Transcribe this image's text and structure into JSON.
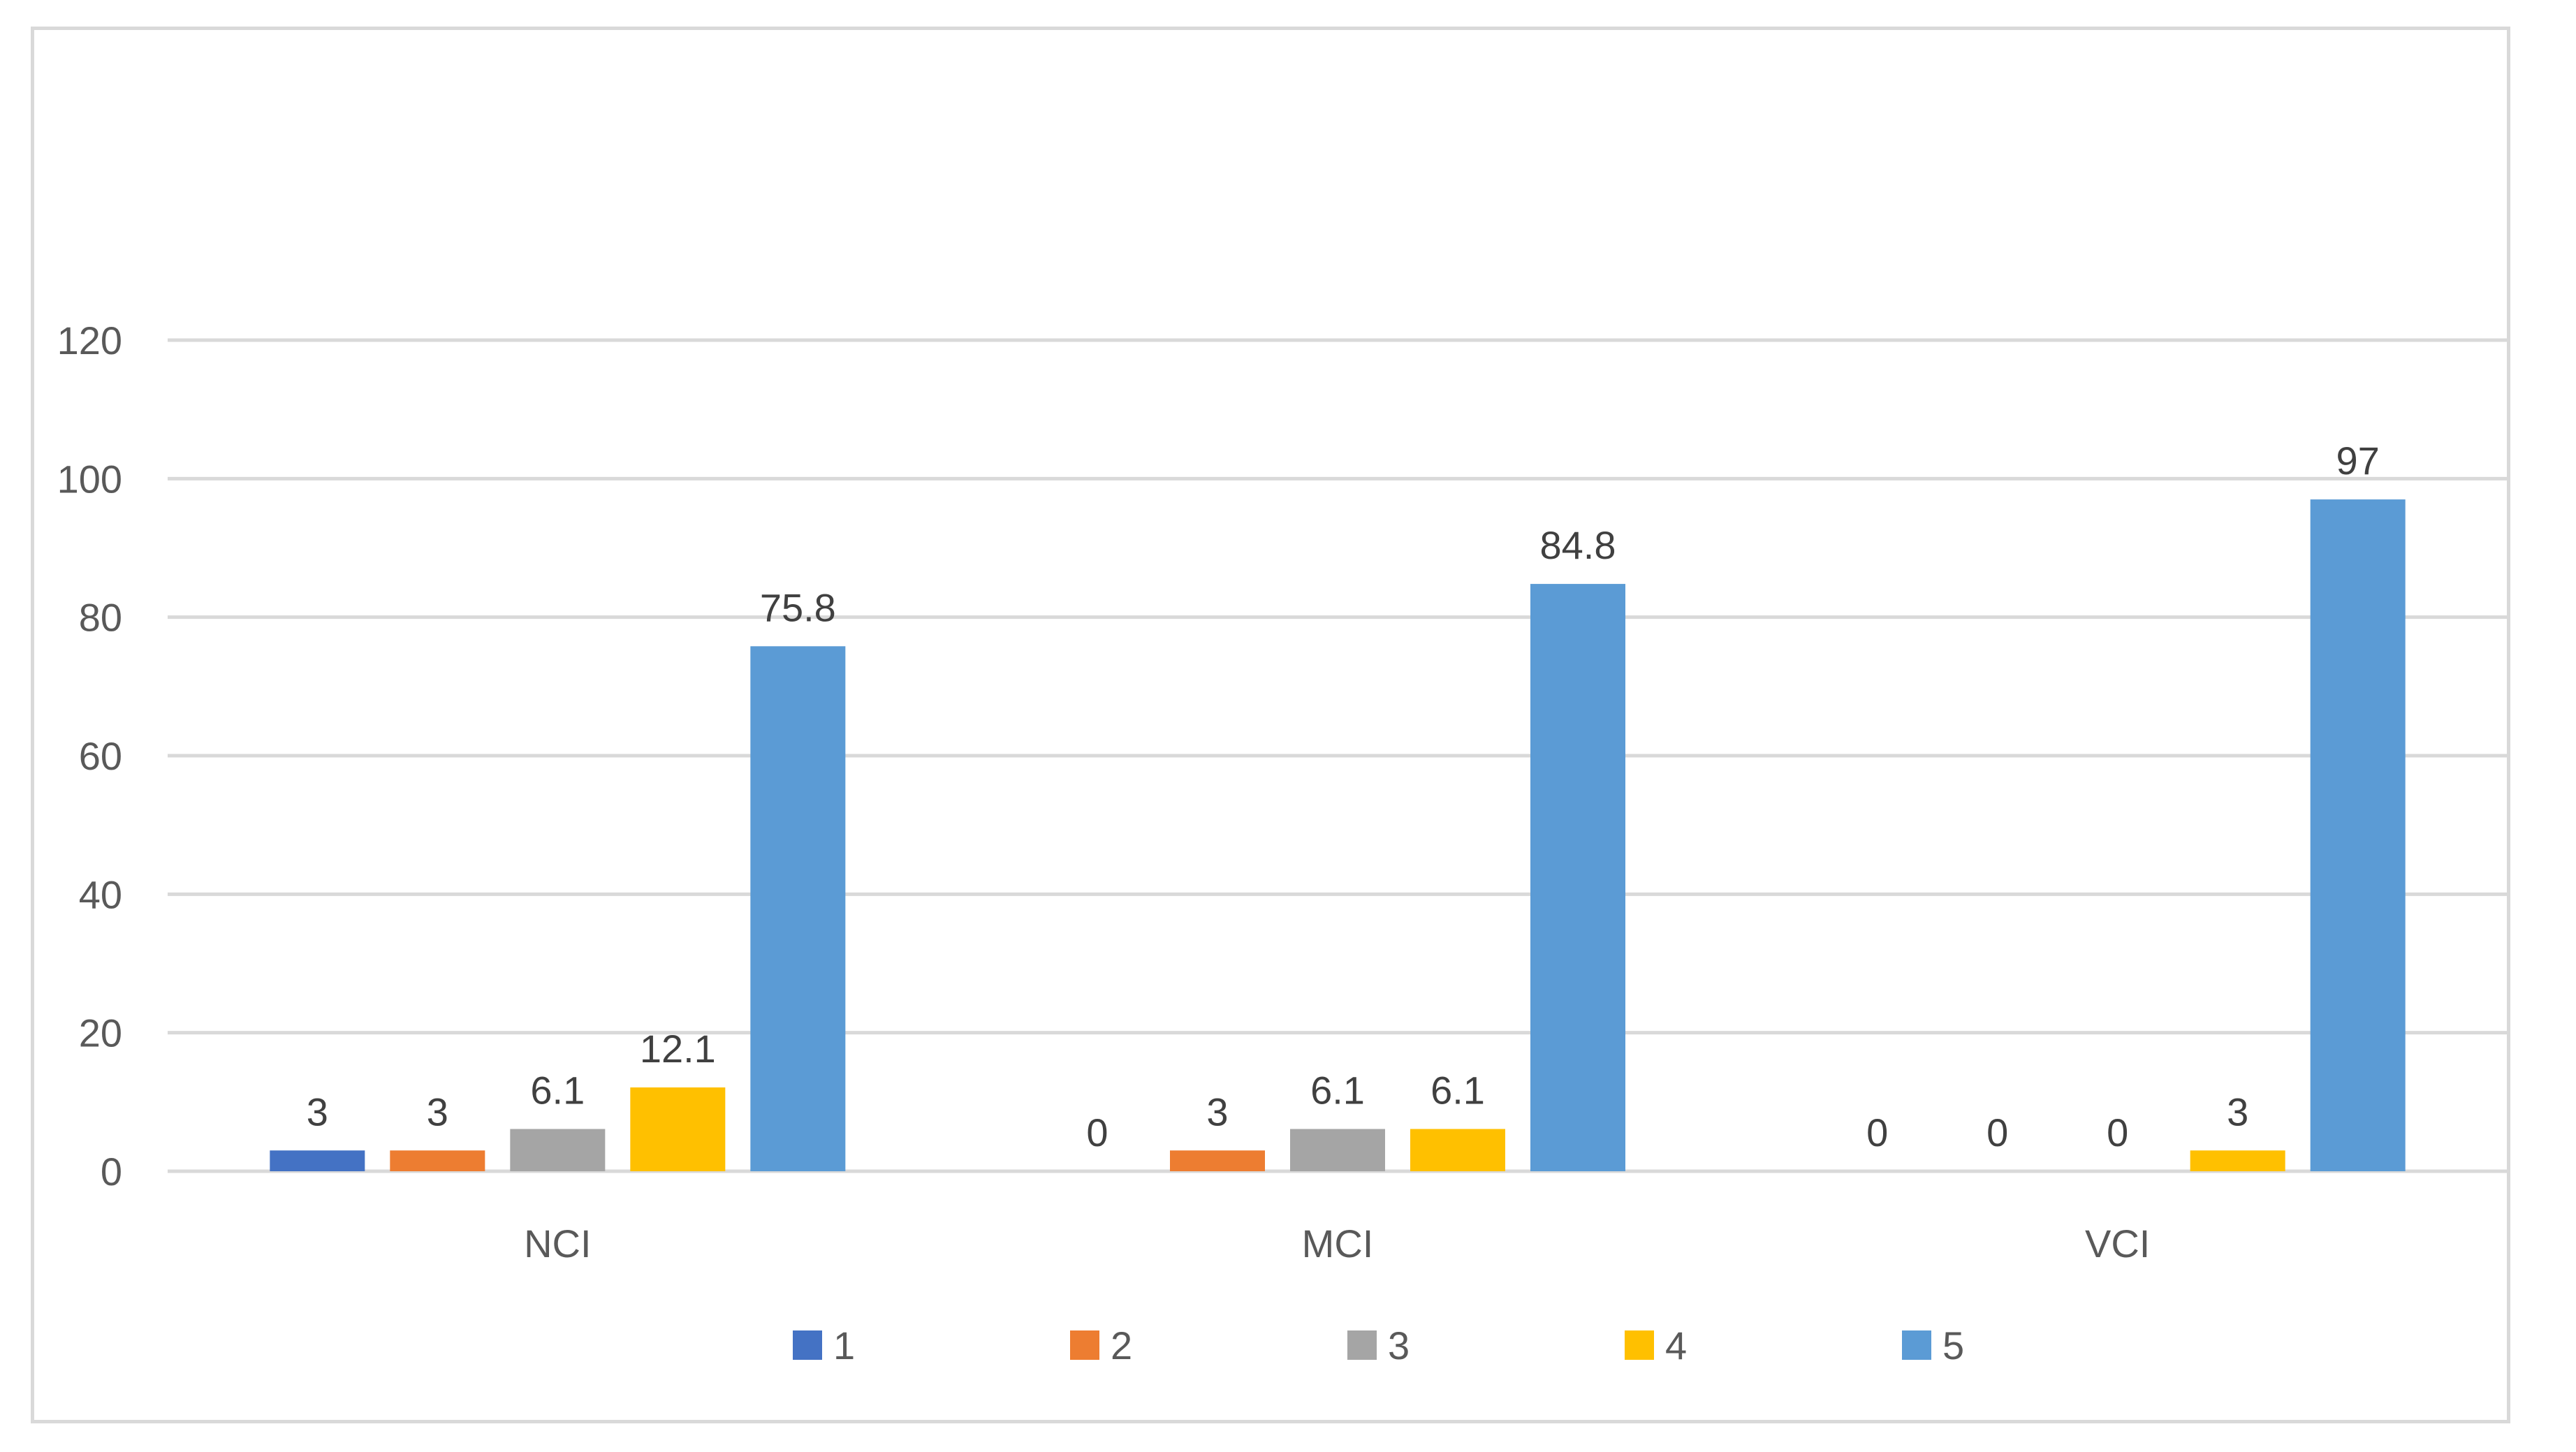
{
  "chart_data": {
    "type": "bar",
    "categories": [
      "NCI",
      "MCI",
      "VCI"
    ],
    "series": [
      {
        "name": "1",
        "values": [
          3,
          0,
          0
        ],
        "labels": [
          "3",
          "0",
          "0"
        ],
        "color": "#4472c4"
      },
      {
        "name": "2",
        "values": [
          3,
          3,
          0
        ],
        "labels": [
          "3",
          "3",
          "0"
        ],
        "color": "#ed7d31"
      },
      {
        "name": "3",
        "values": [
          6.1,
          6.1,
          0
        ],
        "labels": [
          "6.1",
          "6.1",
          "0"
        ],
        "color": "#a5a5a5"
      },
      {
        "name": "4",
        "values": [
          12.1,
          6.1,
          3
        ],
        "labels": [
          "12.1",
          "6.1",
          "3"
        ],
        "color": "#ffc000"
      },
      {
        "name": "5",
        "values": [
          75.8,
          84.8,
          97
        ],
        "labels": [
          "75.8",
          "84.8",
          "97"
        ],
        "color": "#5b9bd5"
      }
    ],
    "yticks": [
      "0",
      "20",
      "40",
      "60",
      "80",
      "100",
      "120"
    ],
    "ylim": [
      0,
      120
    ],
    "grid": true,
    "legend_position": "bottom"
  }
}
